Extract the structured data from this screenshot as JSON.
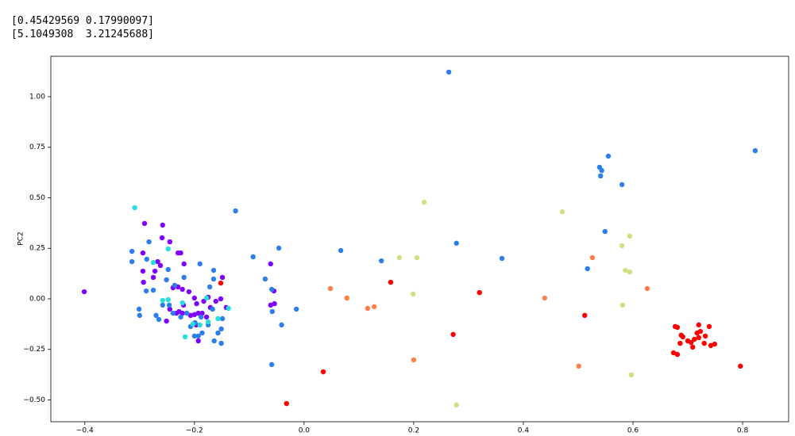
{
  "output_lines": [
    "[0.45429569 0.17990097]",
    "[5.1049308  3.21245688]"
  ],
  "chart_data": {
    "type": "scatter",
    "ylabel": "PC2",
    "xlim": [
      -0.462,
      0.884
    ],
    "ylim": [
      -0.608,
      1.2
    ],
    "xticks": [
      {
        "value": -0.4,
        "label": "−0.4"
      },
      {
        "value": -0.2,
        "label": "−0.2"
      },
      {
        "value": 0,
        "label": "0.0"
      },
      0.2,
      0.4,
      0.6,
      0.8
    ],
    "yticks": [
      {
        "value": -0.5,
        "label": "−0.50"
      },
      {
        "value": -0.25,
        "label": "−0.25"
      },
      {
        "value": 0,
        "label": "0.00"
      },
      {
        "value": 0.25,
        "label": "0.25"
      },
      {
        "value": 0.5,
        "label": "0.50"
      },
      {
        "value": 0.75,
        "label": "0.75"
      },
      {
        "value": 1,
        "label": "1.00"
      }
    ],
    "series": [
      {
        "color": "#8000ff",
        "x": [
          -0.401,
          -0.291,
          -0.294,
          -0.259,
          -0.258,
          -0.245,
          -0.267,
          -0.262,
          -0.272,
          -0.293,
          -0.294,
          -0.275,
          -0.239,
          -0.23,
          -0.222,
          -0.21,
          -0.2,
          -0.196,
          -0.183,
          -0.175,
          -0.161,
          -0.171,
          -0.193,
          -0.2,
          -0.207,
          -0.222,
          -0.228,
          -0.233,
          -0.245,
          -0.251,
          -0.197,
          -0.186,
          -0.178,
          -0.152,
          -0.149,
          -0.142,
          -0.061,
          -0.055,
          -0.054,
          -0.061,
          -0.23,
          -0.225,
          -0.219,
          -0.22,
          -0.193
        ],
        "y": [
          0.035,
          0.373,
          0.227,
          0.302,
          0.365,
          0.282,
          0.184,
          0.165,
          0.137,
          0.082,
          0.137,
          0.106,
          0.055,
          0.059,
          0.047,
          0.035,
          0.004,
          -0.024,
          -0.012,
          0.008,
          -0.012,
          -0.043,
          -0.071,
          -0.078,
          -0.082,
          -0.071,
          -0.063,
          -0.071,
          -0.051,
          -0.11,
          -0.129,
          -0.071,
          -0.09,
          0,
          0.106,
          -0.043,
          0.173,
          0.039,
          -0.024,
          -0.031,
          0.227,
          0.227,
          0.173,
          -0.031,
          -0.208
        ]
      },
      {
        "color": "#2c7ee9",
        "x": [
          0.264,
          0.823,
          0.555,
          0.539,
          0.543,
          0.541,
          0.58,
          0.549,
          0.517,
          -0.125,
          -0.046,
          -0.093,
          0.067,
          0.141,
          0.278,
          0.361,
          -0.071,
          -0.059,
          -0.014,
          -0.041,
          -0.059,
          -0.058,
          -0.314,
          -0.314,
          -0.287,
          -0.283,
          -0.301,
          -0.3,
          -0.27,
          -0.265,
          -0.248,
          -0.251,
          -0.236,
          -0.219,
          -0.19,
          -0.165,
          -0.165,
          -0.172,
          -0.167,
          -0.149,
          -0.151,
          -0.151,
          -0.164,
          -0.193,
          -0.2,
          -0.186,
          -0.207,
          -0.199,
          -0.214,
          -0.225,
          -0.239,
          -0.246,
          -0.258,
          -0.275,
          -0.288,
          -0.175,
          -0.157,
          -0.188
        ],
        "y": [
          1.122,
          0.733,
          0.706,
          0.651,
          0.635,
          0.608,
          0.565,
          0.333,
          0.149,
          0.435,
          0.251,
          0.208,
          0.239,
          0.188,
          0.275,
          0.2,
          0.098,
          0.047,
          -0.051,
          -0.129,
          -0.325,
          -0.063,
          0.235,
          0.184,
          0.196,
          0.282,
          -0.051,
          -0.082,
          -0.082,
          -0.102,
          0.145,
          0.094,
          0.067,
          0.106,
          0.173,
          0.141,
          0.098,
          0.059,
          -0.051,
          -0.098,
          -0.149,
          -0.22,
          -0.208,
          -0.184,
          -0.184,
          -0.169,
          -0.137,
          -0.118,
          -0.071,
          -0.09,
          -0.071,
          -0.031,
          -0.031,
          0.043,
          0.039,
          -0.129,
          -0.169,
          -0.09
        ]
      },
      {
        "color": "#2adddd",
        "x": [
          -0.309,
          -0.248,
          -0.275,
          -0.258,
          -0.248,
          -0.178,
          -0.175,
          -0.138,
          -0.222,
          -0.157,
          -0.203,
          -0.19,
          -0.217
        ],
        "y": [
          0.451,
          0.247,
          0.18,
          -0.008,
          -0.004,
          0.004,
          -0.114,
          -0.047,
          -0.02,
          -0.098,
          -0.125,
          -0.129,
          -0.188
        ]
      },
      {
        "color": "#d4dd80",
        "x": [
          0.219,
          0.471,
          0.174,
          0.206,
          0.199,
          0.278,
          0.594,
          0.58,
          0.586,
          0.594,
          0.581,
          0.597
        ],
        "y": [
          0.478,
          0.431,
          0.204,
          0.204,
          0.024,
          -0.525,
          0.31,
          0.263,
          0.141,
          0.133,
          -0.031,
          -0.376
        ]
      },
      {
        "color": "#ff7f4b",
        "x": [
          0.048,
          0.078,
          0.116,
          0.128,
          0.2,
          0.439,
          0.501,
          0.526,
          0.626
        ],
        "y": [
          0.051,
          0.004,
          -0.047,
          -0.039,
          -0.302,
          0.004,
          -0.333,
          0.204,
          0.051
        ]
      },
      {
        "color": "#ff0000",
        "x": [
          -0.152,
          -0.032,
          0.035,
          0.158,
          0.272,
          0.32,
          0.512,
          0.796,
          0.677,
          0.681,
          0.688,
          0.691,
          0.7,
          0.706,
          0.712,
          0.72,
          0.723,
          0.73,
          0.732,
          0.739,
          0.674,
          0.681,
          0.686,
          0.709,
          0.72,
          0.742,
          0.749,
          0.717
        ],
        "y": [
          0.078,
          -0.518,
          -0.361,
          0.082,
          -0.176,
          0.031,
          -0.082,
          -0.333,
          -0.137,
          -0.141,
          -0.18,
          -0.188,
          -0.208,
          -0.216,
          -0.2,
          -0.192,
          -0.161,
          -0.22,
          -0.184,
          -0.137,
          -0.267,
          -0.275,
          -0.22,
          -0.239,
          -0.129,
          -0.231,
          -0.224,
          -0.169
        ]
      }
    ]
  }
}
